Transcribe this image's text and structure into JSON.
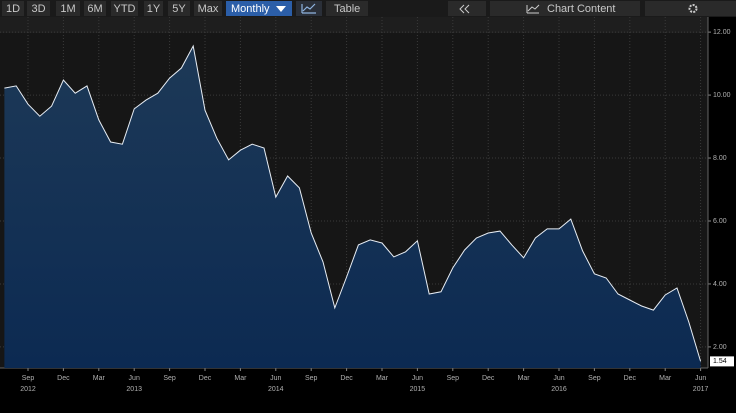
{
  "toolbar": {
    "ranges": [
      "1D",
      "3D",
      "1M",
      "6M",
      "YTD",
      "1Y",
      "5Y",
      "Max"
    ],
    "frequency": "Monthly",
    "table": "Table",
    "content": "Chart Content"
  },
  "chart_data": {
    "type": "area",
    "categories": [
      null,
      null,
      "Sep",
      null,
      null,
      "Dec",
      null,
      null,
      "Mar",
      null,
      null,
      "Jun",
      null,
      null,
      "Sep",
      null,
      null,
      "Dec",
      null,
      null,
      "Mar",
      null,
      null,
      "Jun",
      null,
      null,
      "Sep",
      null,
      null,
      "Dec",
      null,
      null,
      "Mar",
      null,
      null,
      "Jun",
      null,
      null,
      "Sep",
      null,
      null,
      "Dec",
      null,
      null,
      "Mar",
      null,
      null,
      "Jun",
      null,
      null,
      "Sep",
      null,
      null,
      "Dec",
      null,
      null,
      "Mar",
      null,
      null,
      "Jun"
    ],
    "year_labels": [
      null,
      null,
      "2012",
      null,
      null,
      null,
      null,
      null,
      null,
      null,
      null,
      "2013",
      null,
      null,
      null,
      null,
      null,
      null,
      null,
      null,
      null,
      null,
      null,
      "2014",
      null,
      null,
      null,
      null,
      null,
      null,
      null,
      null,
      null,
      null,
      null,
      "2015",
      null,
      null,
      null,
      null,
      null,
      null,
      null,
      null,
      null,
      null,
      null,
      "2016",
      null,
      null,
      null,
      null,
      null,
      null,
      null,
      null,
      null,
      null,
      null,
      "2017"
    ],
    "values": [
      10.22,
      10.29,
      9.71,
      9.33,
      9.65,
      10.48,
      10.06,
      10.29,
      9.21,
      8.51,
      8.44,
      9.56,
      9.84,
      10.06,
      10.54,
      10.86,
      11.56,
      9.52,
      8.63,
      7.94,
      8.25,
      8.44,
      8.32,
      6.76,
      7.43,
      7.05,
      5.62,
      4.7,
      3.24,
      4.22,
      5.24,
      5.4,
      5.3,
      4.86,
      5.02,
      5.37,
      3.68,
      3.75,
      4.51,
      5.08,
      5.46,
      5.62,
      5.68,
      5.24,
      4.83,
      5.46,
      5.75,
      5.75,
      6.06,
      5.05,
      4.32,
      4.19,
      3.68,
      3.49,
      3.3,
      3.17,
      3.65,
      3.87,
      2.79,
      1.54
    ],
    "value_labels": [
      null,
      null,
      null,
      null,
      null,
      null,
      null,
      null,
      null,
      null,
      null,
      null,
      null,
      null,
      null,
      null,
      null,
      null,
      null,
      null,
      null,
      null,
      null,
      null,
      null,
      null,
      null,
      null,
      null,
      null,
      null,
      null,
      null,
      null,
      null,
      null,
      null,
      null,
      null,
      null,
      null,
      null,
      null,
      null,
      null,
      null,
      null,
      null,
      null,
      null,
      null,
      null,
      null,
      null,
      null,
      null,
      null,
      null,
      null,
      "1.54"
    ],
    "color": "#e8eef5",
    "ylim": [
      1.33,
      12.48
    ],
    "yticks": [
      {
        "value": 2,
        "label": "2.00"
      },
      {
        "value": 4,
        "label": "4.00"
      },
      {
        "value": 6,
        "label": "6.00"
      },
      {
        "value": 8,
        "label": "8.00"
      },
      {
        "value": 10,
        "label": "10.00"
      },
      {
        "value": 12,
        "label": "12.00"
      }
    ],
    "grid": true
  }
}
